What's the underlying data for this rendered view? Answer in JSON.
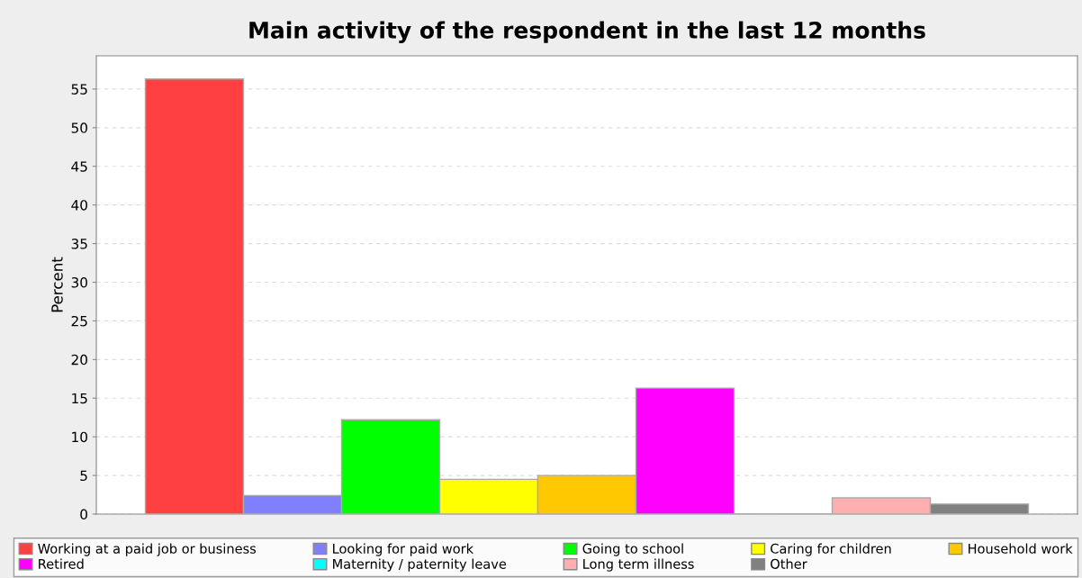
{
  "chart_data": {
    "type": "bar",
    "title": "Main activity of the respondent in the last 12 months",
    "ylabel": "Percent",
    "categories": [
      null
    ],
    "series": [
      {
        "name": "Working at a paid job or business",
        "color": "#ff4040",
        "values": [
          56.3
        ]
      },
      {
        "name": "Looking for paid work",
        "color": "#8080ff",
        "values": [
          2.4
        ]
      },
      {
        "name": "Going to school",
        "color": "#00ff00",
        "values": [
          12.2
        ]
      },
      {
        "name": "Caring for children",
        "color": "#ffff00",
        "values": [
          4.5
        ]
      },
      {
        "name": "Household work",
        "color": "#ffc800",
        "values": [
          5.0
        ]
      },
      {
        "name": "Retired",
        "color": "#ff00ff",
        "values": [
          16.3
        ]
      },
      {
        "name": "Maternity / paternity leave",
        "color": "#00ffff",
        "values": [
          null
        ]
      },
      {
        "name": "Long term illness",
        "color": "#ffafaf",
        "values": [
          2.1
        ]
      },
      {
        "name": "Other",
        "color": "#808080",
        "values": [
          1.3
        ]
      }
    ],
    "ylim": [
      0,
      59.3
    ],
    "yticks": [
      0,
      5,
      10,
      15,
      20,
      25,
      30,
      35,
      40,
      45,
      50,
      55
    ],
    "grid": "y",
    "legend": "bottom"
  }
}
